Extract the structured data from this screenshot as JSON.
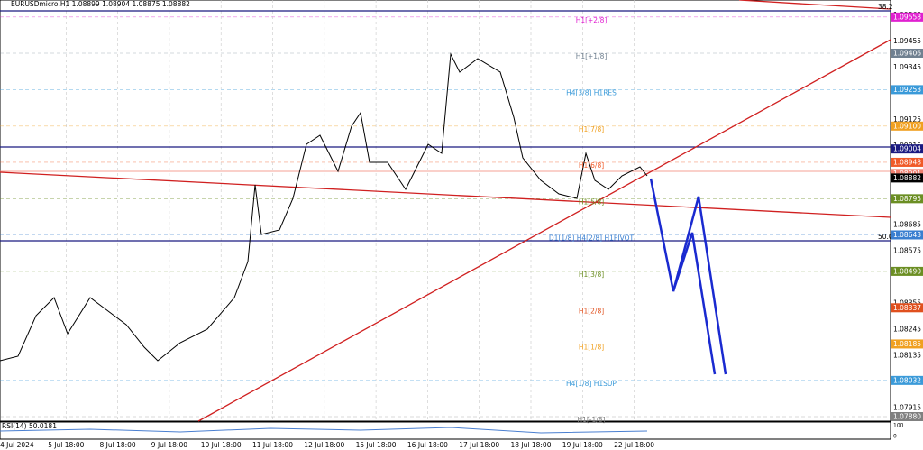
{
  "header": {
    "symbol": "EURUSDmicro,H1",
    "ohlc": "1.08899 1.08904 1.08875 1.08882"
  },
  "price_axis": [
    "1.09565",
    "1.09455",
    "1.09345",
    "1.09125",
    "1.09015",
    "1.08685",
    "1.08575",
    "1.08355",
    "1.08245",
    "1.08135",
    "1.07915"
  ],
  "levels": [
    {
      "label": "H1[+2/8]",
      "price": "1.09558",
      "color": "#e020d0"
    },
    {
      "label": "H1[+1/8]",
      "price": "1.09406",
      "color": "#708090"
    },
    {
      "label": "H4[3/8] H1RES",
      "price": "1.09253",
      "color": "#3a9ad9"
    },
    {
      "label": "H1[7/8]",
      "price": "1.09100",
      "color": "#f0a020"
    },
    {
      "label": "H1[6/8]",
      "price": "1.08948",
      "color": "#f05a28"
    },
    {
      "label": "H1[5/8]",
      "price": "1.08795",
      "color": "#6b8e23"
    },
    {
      "label": "D1[1/8] H4[2/8] H1PIVOT",
      "price": "1.08643",
      "color": "#3a7fd0"
    },
    {
      "label": "H1[3/8]",
      "price": "1.08490",
      "color": "#6b8e23"
    },
    {
      "label": "H1[2/8]",
      "price": "1.08337",
      "color": "#e0501e"
    },
    {
      "label": "H1[1/8]",
      "price": "1.08185",
      "color": "#f0a020"
    },
    {
      "label": "H4[1/8] H1SUP",
      "price": "1.08032",
      "color": "#3a9ad9"
    },
    {
      "label": "H1[-1/8]",
      "price": "1.07880",
      "color": "#808080"
    }
  ],
  "extra_boxes": [
    {
      "price": "1.09004",
      "color": "#1a1a80"
    },
    {
      "price": "1.08901",
      "color": "#f08070"
    },
    {
      "price": "1.08882",
      "color": "#000000"
    }
  ],
  "fibo": [
    "38.2",
    "50.0"
  ],
  "rsi": {
    "label": "RSI(14) 50.0181",
    "top": "100",
    "bottom": "0"
  },
  "time_axis": [
    "4 Jul 2024",
    "5 Jul 18:00",
    "8 Jul 18:00",
    "9 Jul 18:00",
    "10 Jul 18:00",
    "11 Jul 18:00",
    "12 Jul 18:00",
    "15 Jul 18:00",
    "16 Jul 18:00",
    "17 Jul 18:00",
    "18 Jul 18:00",
    "19 Jul 18:00",
    "22 Jul 18:00"
  ]
}
